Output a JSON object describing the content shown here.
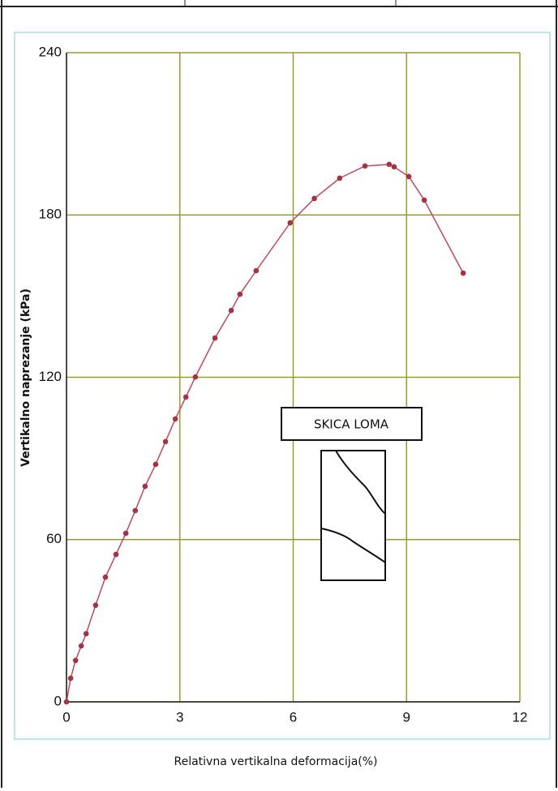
{
  "chart_data": {
    "type": "line",
    "x_label": "Relativna vertikalna deformacija(%)",
    "y_label": "Vertikalno naprezanje (kPa)",
    "annotation": "SKICA LOMA",
    "x": [
      0,
      0.11,
      0.24,
      0.39,
      0.52,
      0.77,
      1.03,
      1.31,
      1.57,
      1.82,
      2.08,
      2.36,
      2.62,
      2.88,
      3.16,
      3.41,
      3.93,
      4.36,
      4.59,
      5.02,
      5.92,
      6.56,
      7.23,
      7.9,
      8.54,
      8.67,
      9.06,
      9.47,
      10.5
    ],
    "series": [
      {
        "color": "#c8465e",
        "marker_color": "#a8303f",
        "values": [
          0,
          8.7,
          15.3,
          20.7,
          25.2,
          35.7,
          46.1,
          54.5,
          62.3,
          70.7,
          79.7,
          87.8,
          96.2,
          104.6,
          112.7,
          120.1,
          134.5,
          144.7,
          150.7,
          159.4,
          177.1,
          186.1,
          193.6,
          198.1,
          198.7,
          197.8,
          194.2,
          185.5,
          158.5
        ]
      }
    ],
    "xlim": [
      0,
      12
    ],
    "ylim": [
      0,
      240
    ],
    "xticks": [
      0,
      3,
      6,
      9,
      12
    ],
    "yticks": [
      0,
      60,
      120,
      180,
      240
    ],
    "grid": true,
    "grid_color": "#9c9c2c"
  }
}
